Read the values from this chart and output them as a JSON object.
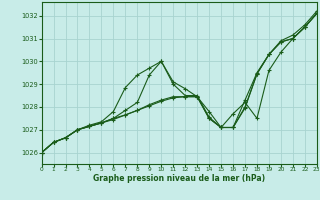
{
  "title": "Graphe pression niveau de la mer (hPa)",
  "bg_color": "#c8ece8",
  "grid_color": "#a8d4d0",
  "line_color": "#1a5c1a",
  "xlim": [
    0,
    23
  ],
  "ylim": [
    1025.5,
    1032.6
  ],
  "yticks": [
    1026,
    1027,
    1028,
    1029,
    1030,
    1031,
    1032
  ],
  "xticks": [
    0,
    1,
    2,
    3,
    4,
    5,
    6,
    7,
    8,
    9,
    10,
    11,
    12,
    13,
    14,
    15,
    16,
    17,
    18,
    19,
    20,
    21,
    22,
    23
  ],
  "series": [
    [
      1026.0,
      1026.45,
      1026.65,
      1027.0,
      1027.15,
      1027.3,
      1027.45,
      1027.65,
      1027.85,
      1028.05,
      1028.25,
      1028.4,
      1028.45,
      1028.45,
      1027.5,
      1027.1,
      1027.1,
      1027.95,
      1029.45,
      1030.3,
      1030.85,
      1031.0,
      1031.5,
      1032.1
    ],
    [
      1026.0,
      1026.45,
      1026.65,
      1027.0,
      1027.15,
      1027.3,
      1027.5,
      1027.85,
      1028.2,
      1029.4,
      1030.0,
      1029.0,
      1028.5,
      1028.5,
      1027.55,
      1027.1,
      1027.7,
      1028.2,
      1027.5,
      1029.6,
      1030.4,
      1031.0,
      1031.5,
      1032.1
    ],
    [
      1026.0,
      1026.45,
      1026.65,
      1027.0,
      1027.15,
      1027.3,
      1027.5,
      1027.65,
      1027.85,
      1028.1,
      1028.3,
      1028.45,
      1028.45,
      1028.45,
      1027.5,
      1027.1,
      1027.1,
      1028.0,
      1029.45,
      1030.3,
      1030.85,
      1031.0,
      1031.5,
      1032.1
    ],
    [
      1026.0,
      1026.45,
      1026.65,
      1027.0,
      1027.2,
      1027.35,
      1027.8,
      1028.85,
      1029.4,
      1029.7,
      1030.0,
      1029.1,
      1028.8,
      1028.45,
      1027.8,
      1027.1,
      1027.1,
      1028.3,
      1029.5,
      1030.3,
      1030.9,
      1031.15,
      1031.6,
      1032.2
    ]
  ]
}
